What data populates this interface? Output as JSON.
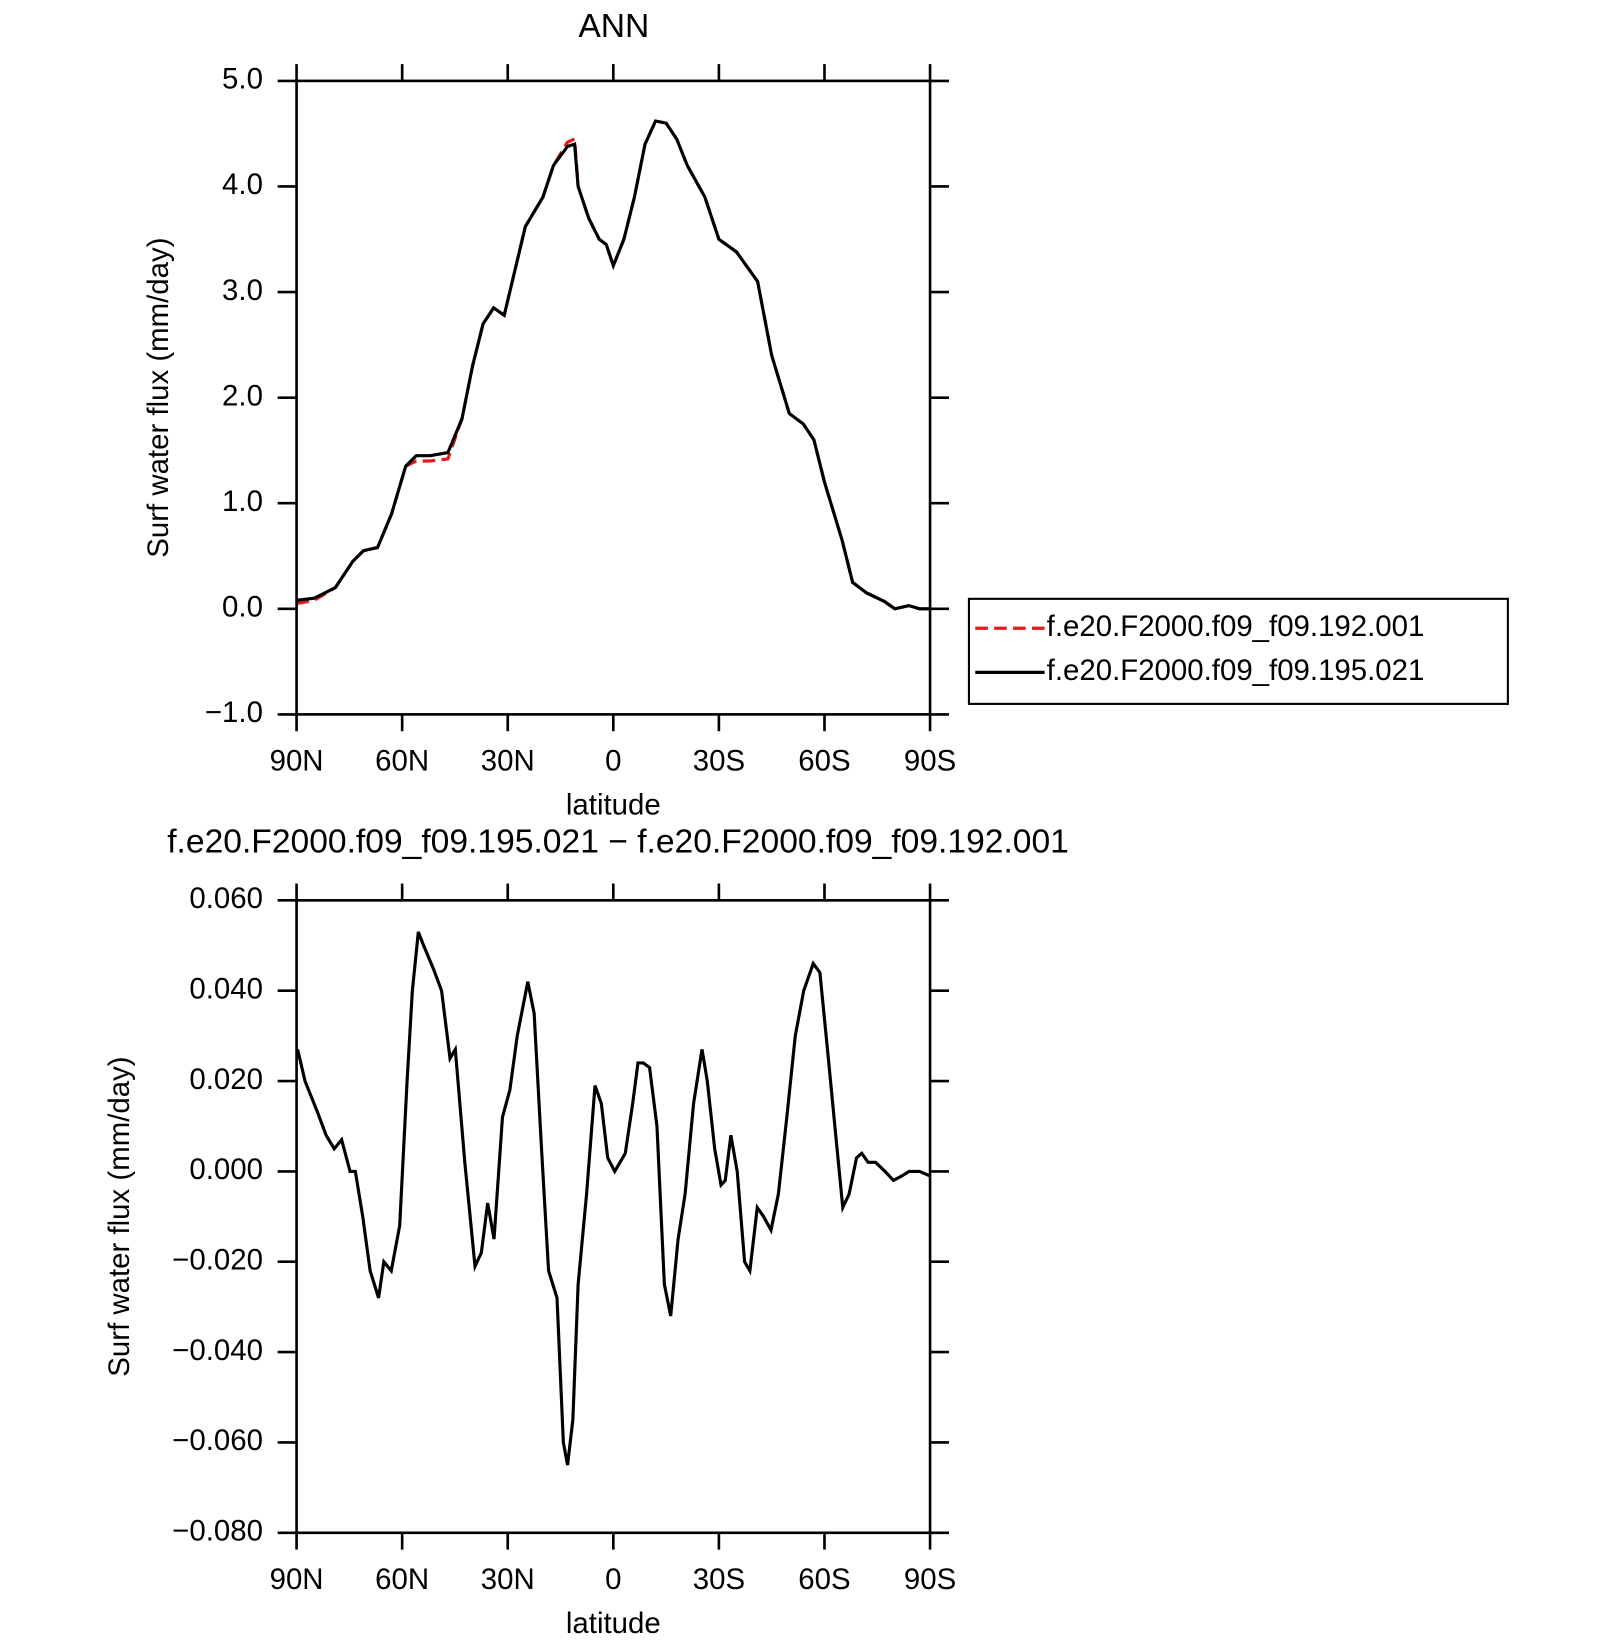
{
  "chart_data": [
    {
      "type": "line",
      "title": "ANN",
      "xlabel": "latitude",
      "ylabel": "Surf water flux (mm/day)",
      "x": [
        90,
        85,
        79,
        74,
        71,
        67,
        63,
        59,
        56,
        52,
        47,
        43,
        40,
        37,
        34,
        31,
        28,
        25,
        20,
        17,
        13,
        11,
        10,
        7,
        4,
        2,
        0,
        -3,
        -6,
        -9,
        -12,
        -15,
        -18,
        -21,
        -26,
        -30,
        -35,
        -41,
        -45,
        -50,
        -54,
        -57,
        -60,
        -65,
        -68,
        -72,
        -77,
        -80,
        -84,
        -87,
        -90
      ],
      "series": [
        {
          "name": "f.e20.F2000.f09_f09.192.001",
          "color": "#e41a1c",
          "linestyle": "dashed",
          "values": [
            0.05,
            0.08,
            0.2,
            0.45,
            0.55,
            0.58,
            0.9,
            1.35,
            1.4,
            1.4,
            1.42,
            1.8,
            2.3,
            2.7,
            2.85,
            2.78,
            3.2,
            3.62,
            3.9,
            4.2,
            4.42,
            4.45,
            4.0,
            3.7,
            3.5,
            3.45,
            3.25,
            3.5,
            3.9,
            4.4,
            4.62,
            4.6,
            4.45,
            4.2,
            3.9,
            3.5,
            3.38,
            3.1,
            2.4,
            1.85,
            1.75,
            1.6,
            1.2,
            0.65,
            0.25,
            0.15,
            0.07,
            0.0,
            0.03,
            0.0,
            0.0
          ]
        },
        {
          "name": "f.e20.F2000.f09_f09.195.021",
          "color": "#000000",
          "linestyle": "solid",
          "values": [
            0.08,
            0.1,
            0.2,
            0.45,
            0.55,
            0.58,
            0.9,
            1.35,
            1.45,
            1.45,
            1.48,
            1.8,
            2.3,
            2.7,
            2.85,
            2.78,
            3.2,
            3.62,
            3.9,
            4.2,
            4.38,
            4.4,
            4.0,
            3.7,
            3.5,
            3.45,
            3.25,
            3.5,
            3.9,
            4.4,
            4.62,
            4.6,
            4.45,
            4.2,
            3.9,
            3.5,
            3.38,
            3.1,
            2.4,
            1.85,
            1.75,
            1.6,
            1.2,
            0.65,
            0.25,
            0.15,
            0.07,
            0.0,
            0.03,
            0.0,
            0.0
          ]
        }
      ],
      "xlim": [
        90,
        -90
      ],
      "xticks": [
        {
          "value": 90,
          "label": "90N"
        },
        {
          "value": 60,
          "label": "60N"
        },
        {
          "value": 30,
          "label": "30N"
        },
        0,
        {
          "value": -30,
          "label": "30S"
        },
        {
          "value": -60,
          "label": "60S"
        },
        {
          "value": -90,
          "label": "90S"
        }
      ],
      "ylim": [
        -1,
        5
      ],
      "yticks": [
        {
          "value": -1,
          "label": "−1.0"
        },
        {
          "value": 0,
          "label": "0.0"
        },
        {
          "value": 1,
          "label": "1.0"
        },
        {
          "value": 2,
          "label": "2.0"
        },
        {
          "value": 3,
          "label": "3.0"
        },
        {
          "value": 4,
          "label": "4.0"
        },
        {
          "value": 5,
          "label": "5.0"
        }
      ],
      "legend": "right"
    },
    {
      "type": "line",
      "title": "f.e20.F2000.f09_f09.195.021 − f.e20.F2000.f09_f09.192.001",
      "xlabel": "latitude",
      "ylabel": "Surf water flux (mm/day)",
      "x": [
        89.7,
        87.6,
        84,
        81.6,
        79.3,
        77.2,
        74.8,
        73.3,
        71.2,
        69.1,
        66.7,
        65.2,
        63.1,
        60.7,
        58.6,
        57.1,
        55.4,
        53.9,
        51.2,
        48.8,
        46.4,
        44.9,
        42.2,
        39.3,
        37.5,
        35.7,
        33.9,
        31.5,
        29.4,
        27.3,
        24.3,
        22.5,
        20.4,
        18.4,
        16,
        14.2,
        13,
        11.5,
        10,
        7.6,
        5.2,
        3.4,
        1.6,
        -0.4,
        -3.4,
        -5.5,
        -7,
        -8.5,
        -10.3,
        -12.4,
        -14.5,
        -16.3,
        -18.4,
        -20.4,
        -22.8,
        -25.2,
        -26.7,
        -28.8,
        -30.6,
        -31.8,
        -33.4,
        -35.2,
        -37.3,
        -38.8,
        -40.9,
        -42.7,
        -44.8,
        -46.9,
        -49.3,
        -51.7,
        -54.1,
        -56.8,
        -58.7,
        -61.1,
        -63.2,
        -65.2,
        -67,
        -69.1,
        -70.6,
        -72.4,
        -74.5,
        -77.2,
        -79.6,
        -82,
        -84,
        -87,
        -90
      ],
      "values": [
        0.027,
        0.02,
        0.013,
        0.008,
        0.005,
        0.007,
        0,
        0,
        -0.01,
        -0.022,
        -0.028,
        -0.02,
        -0.022,
        -0.012,
        0.02,
        0.04,
        0.053,
        0.05,
        0.045,
        0.04,
        0.025,
        0.027,
        0.002,
        -0.021,
        -0.018,
        -0.007,
        -0.015,
        0.012,
        0.018,
        0.03,
        0.042,
        0.035,
        0.005,
        -0.022,
        -0.028,
        -0.06,
        -0.065,
        -0.055,
        -0.025,
        -0.005,
        0.019,
        0.015,
        0.003,
        0,
        0.004,
        0.015,
        0.024,
        0.024,
        0.023,
        0.01,
        -0.025,
        -0.032,
        -0.015,
        -0.005,
        0.015,
        0.027,
        0.02,
        0.005,
        -0.003,
        -0.002,
        0.008,
        0,
        -0.02,
        -0.022,
        -0.008,
        -0.01,
        -0.013,
        -0.005,
        0.012,
        0.03,
        0.04,
        0.046,
        0.044,
        0.025,
        0.008,
        -0.008,
        -0.005,
        0.003,
        0.004,
        0.002,
        0.002,
        0,
        -0.002,
        -0.001,
        0,
        0,
        -0.001
      ],
      "color": "#000000",
      "xlim": [
        90,
        -90
      ],
      "xticks": [
        {
          "value": 90,
          "label": "90N"
        },
        {
          "value": 60,
          "label": "60N"
        },
        {
          "value": 30,
          "label": "30N"
        },
        0,
        {
          "value": -30,
          "label": "30S"
        },
        {
          "value": -60,
          "label": "60S"
        },
        {
          "value": -90,
          "label": "90S"
        }
      ],
      "ylim": [
        -0.08,
        0.06
      ],
      "yticks": [
        {
          "value": -0.08,
          "label": "−0.080"
        },
        {
          "value": -0.06,
          "label": "−0.060"
        },
        {
          "value": -0.04,
          "label": "−0.040"
        },
        {
          "value": -0.02,
          "label": "−0.020"
        },
        {
          "value": 0,
          "label": "0.000"
        },
        {
          "value": 0.02,
          "label": "0.020"
        },
        {
          "value": 0.04,
          "label": "0.040"
        },
        {
          "value": 0.06,
          "label": "0.060"
        }
      ]
    }
  ]
}
